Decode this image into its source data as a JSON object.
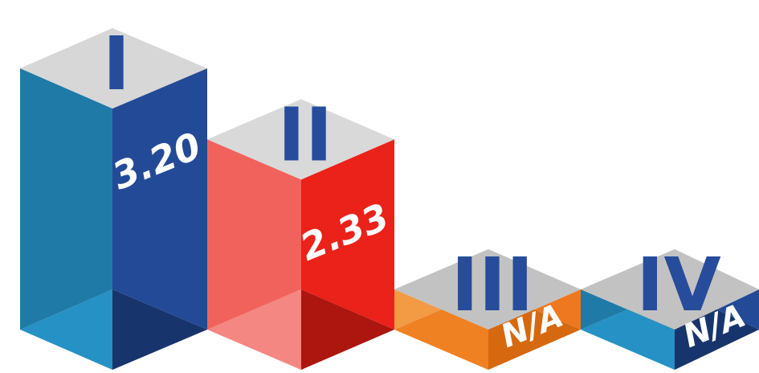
{
  "chart_data": {
    "type": "bar",
    "categories": [
      "I",
      "II",
      "III",
      "IV"
    ],
    "values": [
      3.2,
      2.33,
      null,
      null
    ],
    "value_labels": [
      "3.20",
      "2.33",
      "N/A",
      "N/A"
    ],
    "title": "",
    "xlabel": "",
    "ylabel": "",
    "ylim": [
      0,
      3.2
    ],
    "grid": false,
    "legend": "none",
    "colors": {
      "I": {
        "left": "#1f7aa8",
        "right": "#234a96",
        "top": "#d7d7d7",
        "bottom_left": "#2691c4",
        "bottom_right": "#17346c"
      },
      "II": {
        "left": "#f2625d",
        "right": "#ea2219",
        "top": "#d9d9d9",
        "bottom_left": "#f48782",
        "bottom_right": "#ad150f"
      },
      "III": {
        "left": "#f29a44",
        "right": "#ee781f",
        "top": "#c2c2c2",
        "bottom_left": "#f08122",
        "bottom_right": "#d6680f"
      },
      "IV": {
        "left": "#1f7aa8",
        "right": "#234a96",
        "top": "#c2c2c2",
        "bottom_left": "#2691c4",
        "bottom_right": "#17346c"
      }
    }
  }
}
